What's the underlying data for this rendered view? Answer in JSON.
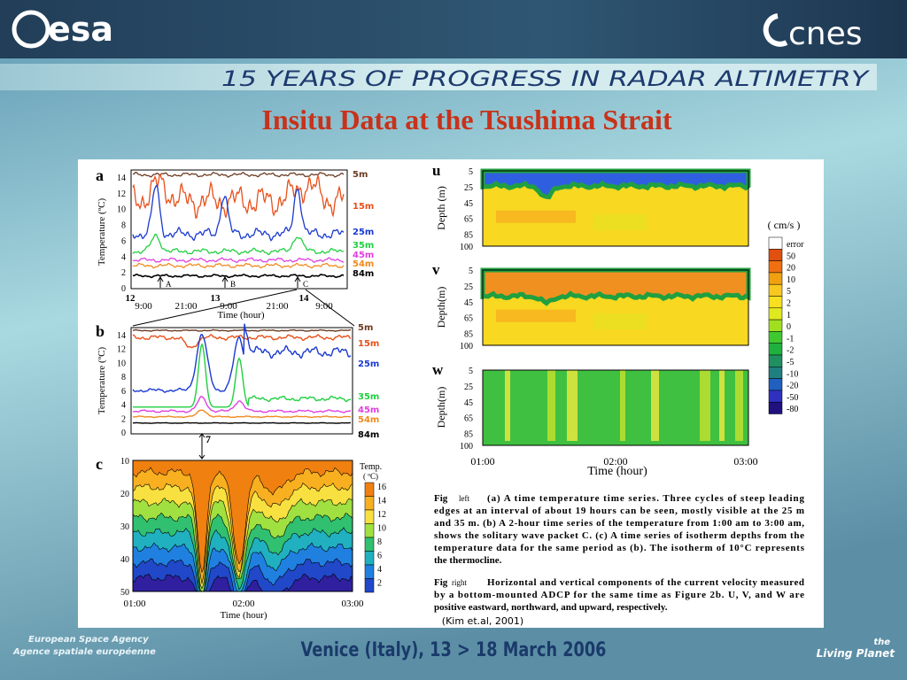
{
  "header": {
    "left_logo": "esa",
    "right_logo": "cnes",
    "banner": "15 YEARS OF PROGRESS IN RADAR ALTIMETRY"
  },
  "title": "Insitu Data at the Tsushima Strait",
  "figure_left": {
    "panel_a": {
      "label": "a",
      "y_label": "Temperature (ºC)",
      "yticks": [
        "0",
        "2",
        "4",
        "6",
        "8",
        "10",
        "12",
        "14"
      ],
      "x_labels": [
        "9:00",
        "21:00",
        "9:00",
        "21:00",
        "9:00"
      ],
      "day_labels": [
        "12",
        "13",
        "14"
      ],
      "markers": [
        "A",
        "B",
        "C"
      ],
      "x_title": "Time (hour)",
      "depths": [
        "5m",
        "15m",
        "25m",
        "35m",
        "45m",
        "54m",
        "84m"
      ]
    },
    "panel_b": {
      "label": "b",
      "y_label": "Temperature (ºC)",
      "yticks": [
        "0",
        "2",
        "4",
        "6",
        "8",
        "10",
        "12",
        "14"
      ],
      "depths": [
        "5m",
        "15m",
        "25m",
        "35m",
        "45m",
        "54m",
        "84m"
      ],
      "marker": "7"
    },
    "panel_c": {
      "label": "c",
      "yticks": [
        "10",
        "20",
        "30",
        "40",
        "50"
      ],
      "x_labels": [
        "01:00",
        "02:00",
        "03:00"
      ],
      "x_title": "Time (hour)",
      "legend_title": [
        "Temp.",
        "( ºC)"
      ],
      "legend": [
        "16",
        "14",
        "12",
        "10",
        "8",
        "6",
        "4",
        "2"
      ]
    }
  },
  "figure_right": {
    "panels": [
      {
        "label": "u",
        "y_label": "Depth (m)"
      },
      {
        "label": "v",
        "y_label": "Depth(m)"
      },
      {
        "label": "w",
        "y_label": "Depth(m)"
      }
    ],
    "yticks": [
      "5",
      "25",
      "45",
      "65",
      "85",
      "100"
    ],
    "x_labels": [
      "01:00",
      "02:00",
      "03:00"
    ],
    "x_title": "Time (hour)",
    "legend_title": "( cm/s )",
    "legend": [
      "error",
      "50",
      "20",
      "10",
      "5",
      "2",
      "1",
      "0",
      "-1",
      "-2",
      "-5",
      "-10",
      "-20",
      "-50",
      "-80"
    ]
  },
  "caption": {
    "left": {
      "fig": "Fig",
      "ref": "left",
      "lines": [
        "(a) A time temperature time series.  Three cycles of steep leading",
        "edges at an interval of about 19 hours can be seen, mostly visible at the 25 m",
        "and 35 m. (b) A 2-hour time series of the temperature from 1:00 am to 3:00 am,",
        "shows the solitary wave packet C. (c) A time series of isotherm depths from the",
        "temperature data for the same period as (b).  The isotherm of 10°C represents",
        "the thermocline."
      ]
    },
    "right": {
      "fig": "Fig",
      "ref": "right",
      "lines": [
        "Horizontal and vertical components of the current velocity measured",
        "by a bottom-mounted ADCP for the same time as Figure 2b.  U, V, and W are",
        "positive eastward, northward, and upward, respectively."
      ]
    },
    "citation": "(Kim et.al, 2001)"
  },
  "footer": {
    "venue": "Venice (Italy), 13 > 18 March 2006",
    "agency": [
      "European Space Agency",
      "Agence spatiale européenne"
    ],
    "living_planet": [
      "the",
      "Living Planet"
    ]
  }
}
